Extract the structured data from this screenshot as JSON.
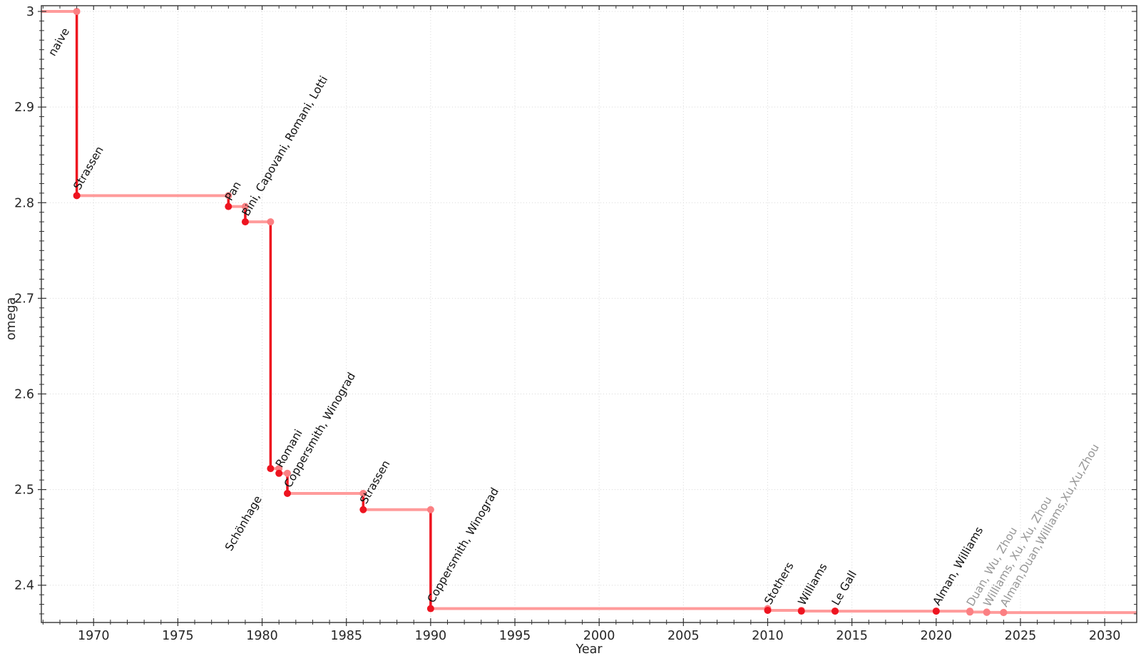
{
  "chart_data": {
    "type": "line",
    "variant": "step-post",
    "title": "",
    "xlabel": "Year",
    "ylabel": "omega",
    "xlim": [
      1966.9,
      2031.9
    ],
    "ylim": [
      2.361,
      3.006
    ],
    "x_major_ticks": [
      1970,
      1975,
      1980,
      1985,
      1990,
      1995,
      2000,
      2005,
      2010,
      2015,
      2020,
      2025,
      2030
    ],
    "x_minor_step": 1,
    "y_major_ticks": [
      {
        "value": 3.0,
        "label": "3"
      },
      {
        "value": 2.9,
        "label": "2.9"
      },
      {
        "value": 2.8,
        "label": "2.8"
      },
      {
        "value": 2.7,
        "label": "2.7"
      },
      {
        "value": 2.6,
        "label": "2.6"
      },
      {
        "value": 2.5,
        "label": "2.5"
      },
      {
        "value": 2.4,
        "label": "2.4"
      }
    ],
    "y_minor_step": 0.01,
    "grid": {
      "show": true,
      "style": "dotted",
      "on": "major-both-axes"
    },
    "legend": "none",
    "annotation_rotation_deg": 60,
    "colors": {
      "line_step": "#ff9b9b",
      "point_corner": "#fb8083",
      "confirmed": "#ee1420",
      "tentative_point": "#fb8083",
      "annotation": "#101010",
      "annotation_tentative": "#969696",
      "grid": "#d9d9d9",
      "axis": "#333333",
      "tick_label": "#262626"
    },
    "baseline": {
      "label": "naive",
      "omega": 3.0,
      "status": "confirmed",
      "label_anchor": "end",
      "label_dx": -10,
      "label_dy": 27
    },
    "events": [
      {
        "year": 1969,
        "omega": 2.8074,
        "label": "Strassen",
        "status": "confirmed"
      },
      {
        "year": 1978,
        "omega": 2.796,
        "label": "Pan",
        "status": "confirmed"
      },
      {
        "year": 1979,
        "omega": 2.78,
        "label": "Bini, Capovani, Romani, Lotti",
        "status": "confirmed"
      },
      {
        "year": 1980.5,
        "omega": 2.522,
        "label": "Schönhage",
        "status": "confirmed",
        "label_anchor": "end",
        "label_dx": -12,
        "label_dy": 42
      },
      {
        "year": 1981,
        "omega": 2.517,
        "label": "Romani",
        "status": "confirmed"
      },
      {
        "year": 1981.5,
        "omega": 2.496,
        "label": "Coppersmith, Winograd",
        "status": "confirmed"
      },
      {
        "year": 1986,
        "omega": 2.479,
        "label": "Strassen",
        "status": "confirmed"
      },
      {
        "year": 1990,
        "omega": 2.3755,
        "label": "Coppersmith, Winograd",
        "status": "confirmed"
      },
      {
        "year": 2010,
        "omega": 2.3737,
        "label": "Stothers",
        "status": "confirmed"
      },
      {
        "year": 2012,
        "omega": 2.3729,
        "label": "Williams",
        "status": "confirmed"
      },
      {
        "year": 2014,
        "omega": 2.3728639,
        "label": "Le Gall",
        "status": "confirmed"
      },
      {
        "year": 2020,
        "omega": 2.3728596,
        "label": "Alman, Williams",
        "status": "confirmed"
      },
      {
        "year": 2022,
        "omega": 2.371866,
        "label": "Duan, Wu, Zhou",
        "status": "tentative"
      },
      {
        "year": 2023,
        "omega": 2.371552,
        "label": "Williams, Xu, Xu, Zhou",
        "status": "tentative"
      },
      {
        "year": 2024,
        "omega": 2.371339,
        "label": "Alman,Duan,Williams,Xu,Xu,Zhou",
        "status": "tentative"
      }
    ]
  }
}
